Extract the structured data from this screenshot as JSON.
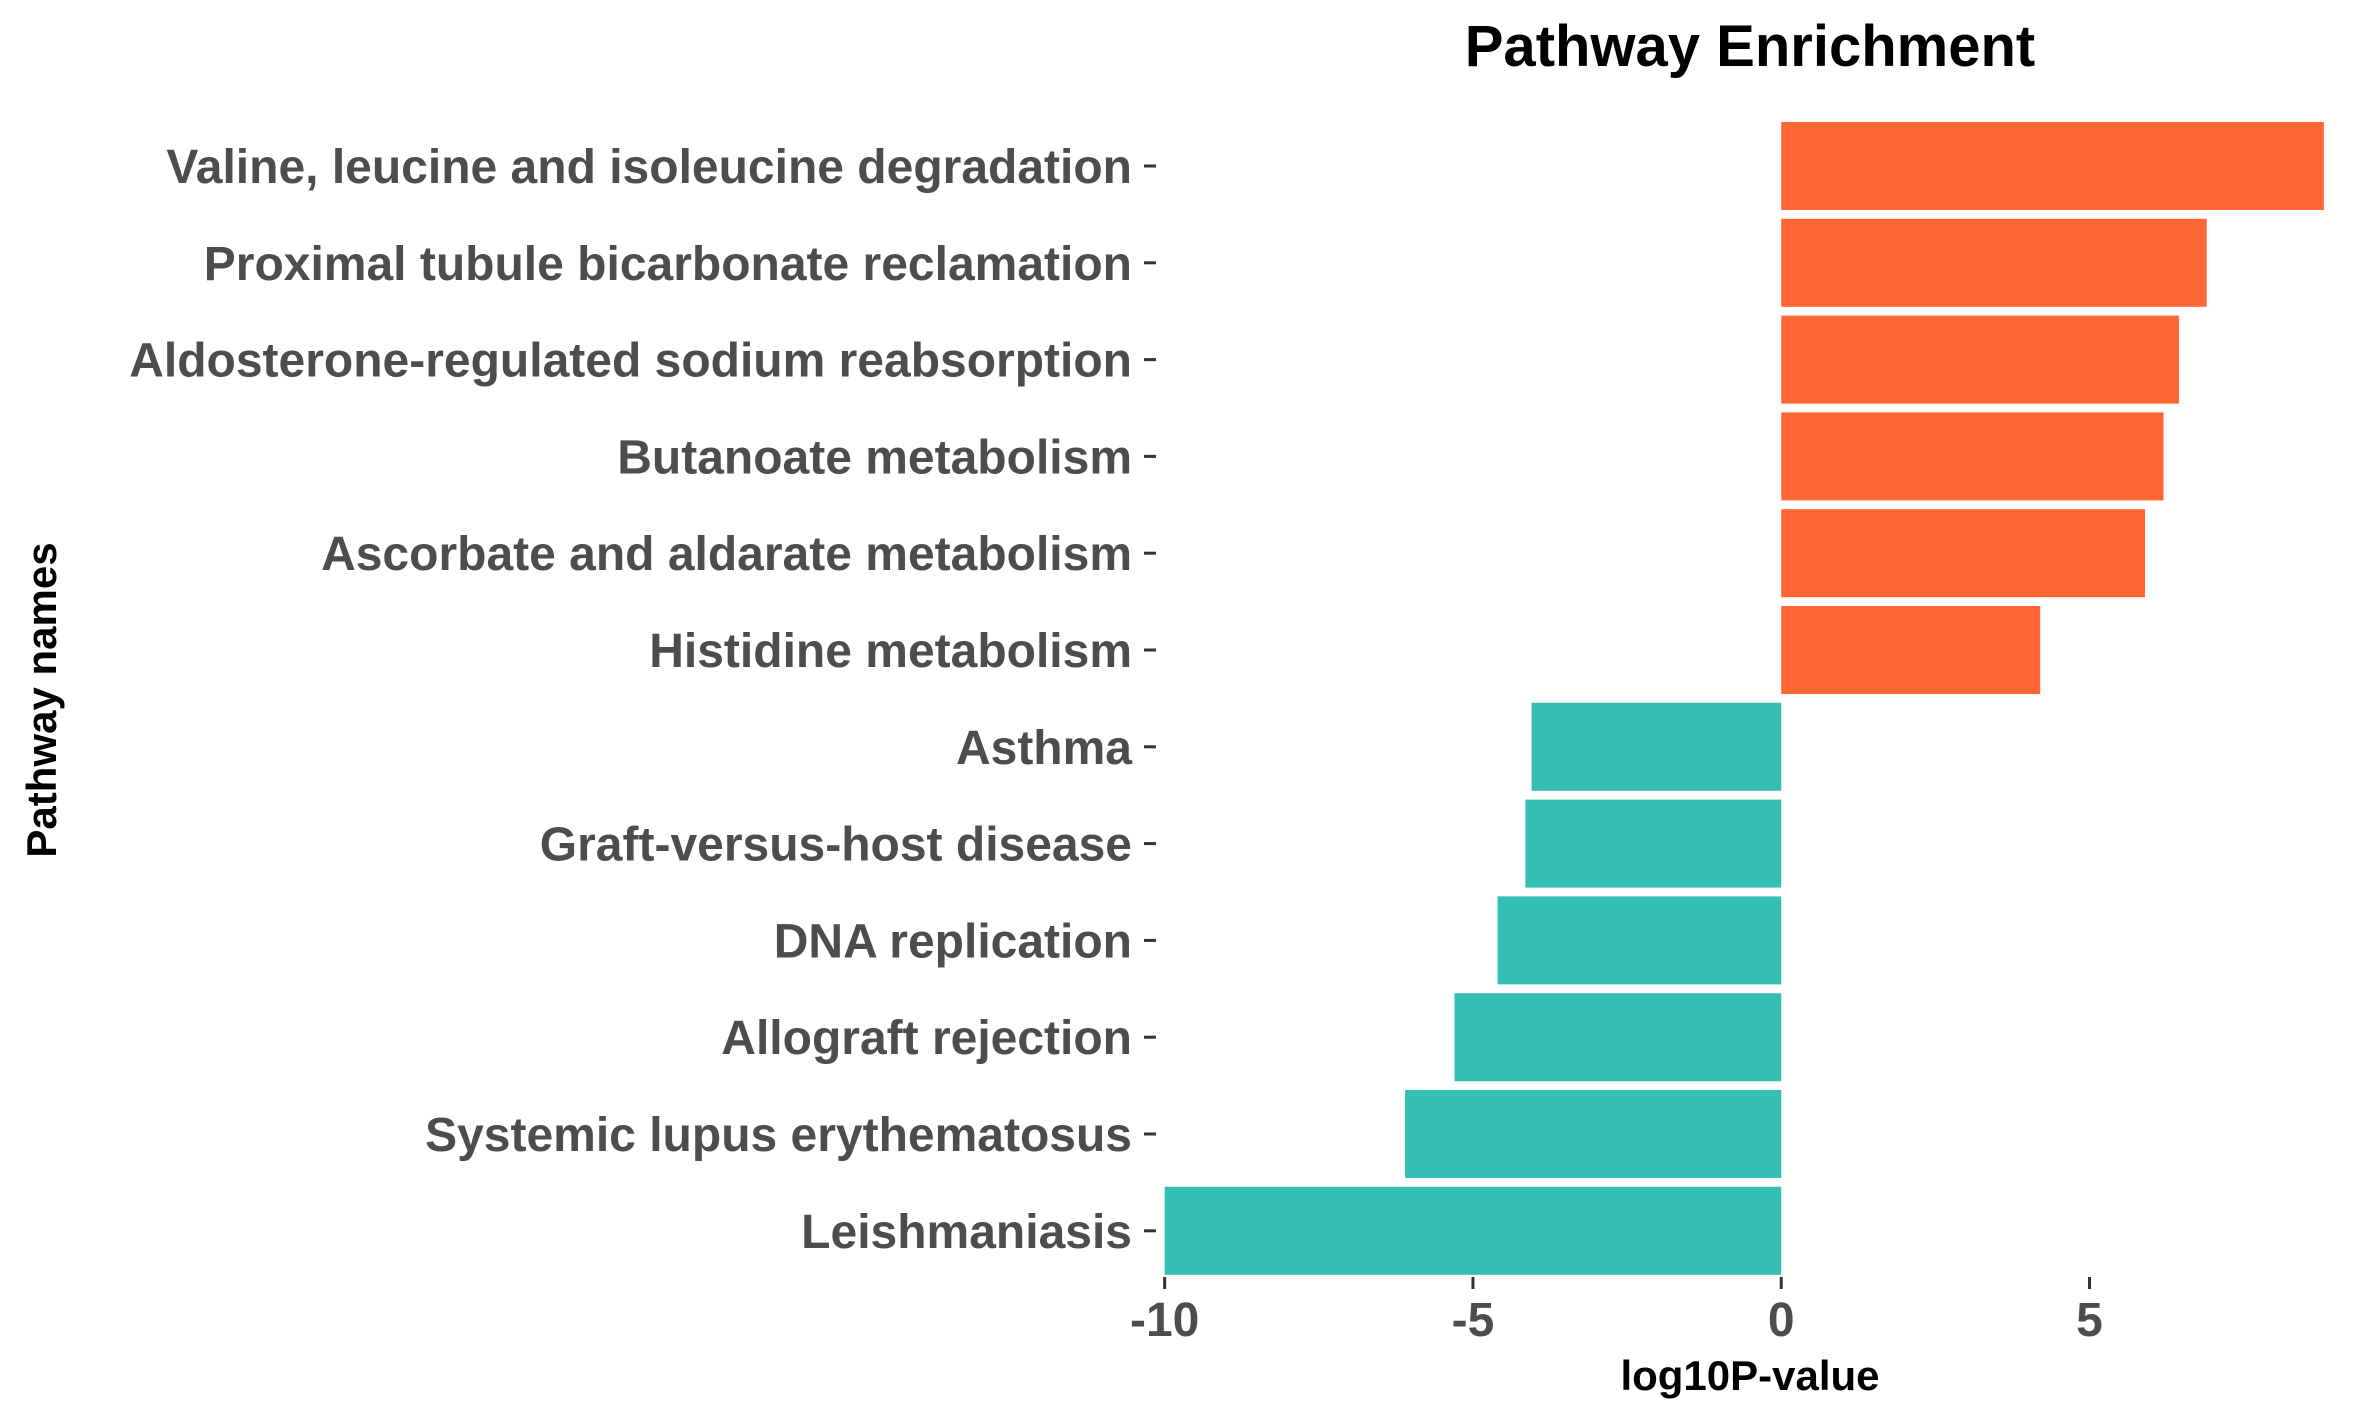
{
  "chart_data": {
    "type": "bar",
    "orientation": "horizontal",
    "title": "Pathway Enrichment",
    "xlabel": "log10P-value",
    "ylabel": "Pathway names",
    "xlim": [
      -10.4,
      8.9
    ],
    "xticks": [
      -10,
      -5,
      0,
      5
    ],
    "grid": false,
    "legend": "none",
    "colors": {
      "positive": "#ff6633",
      "negative": "#33bfb3"
    },
    "categories": [
      "Valine, leucine and isoleucine degradation",
      "Proximal tubule bicarbonate reclamation",
      "Aldosterone-regulated sodium reabsorption",
      "Butanoate metabolism",
      "Ascorbate and aldarate metabolism",
      "Histidine metabolism",
      "Asthma",
      "Graft-versus-host disease",
      "DNA replication",
      "Allograft rejection",
      "Systemic lupus erythematosus",
      "Leishmaniasis"
    ],
    "values": [
      8.8,
      6.9,
      6.45,
      6.2,
      5.9,
      4.2,
      -4.05,
      -4.15,
      -4.6,
      -5.3,
      -6.1,
      -10.0
    ]
  }
}
